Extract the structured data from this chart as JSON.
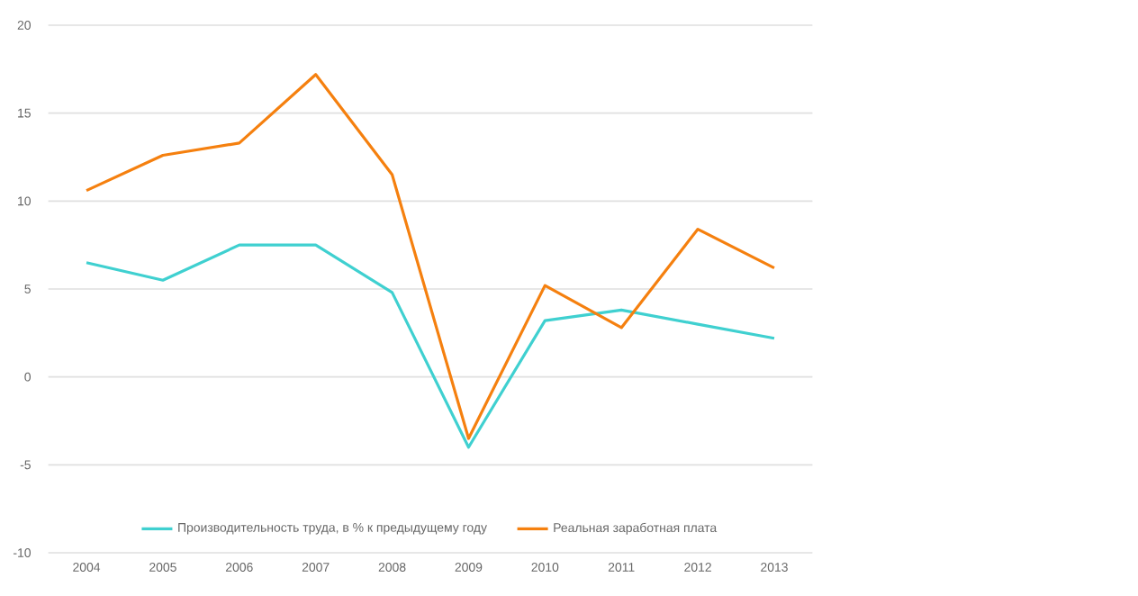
{
  "chart_data": {
    "type": "line",
    "categories": [
      "2004",
      "2005",
      "2006",
      "2007",
      "2008",
      "2009",
      "2010",
      "2011",
      "2012",
      "2013"
    ],
    "series": [
      {
        "name": "Производительность труда, в % к предыдущему году",
        "color": "#3fd0d0",
        "values": [
          6.5,
          5.5,
          7.5,
          7.5,
          4.8,
          -4.0,
          3.2,
          3.8,
          3.0,
          2.2
        ]
      },
      {
        "name": "Реальная заработная плата",
        "color": "#f5800f",
        "values": [
          10.6,
          12.6,
          13.3,
          17.2,
          11.5,
          -3.5,
          5.2,
          2.8,
          8.4,
          6.2
        ]
      }
    ],
    "ylim": [
      -10,
      20
    ],
    "yticks": [
      -10,
      -5,
      0,
      5,
      10,
      15,
      20
    ],
    "grid": "y",
    "legend": "bottom"
  }
}
